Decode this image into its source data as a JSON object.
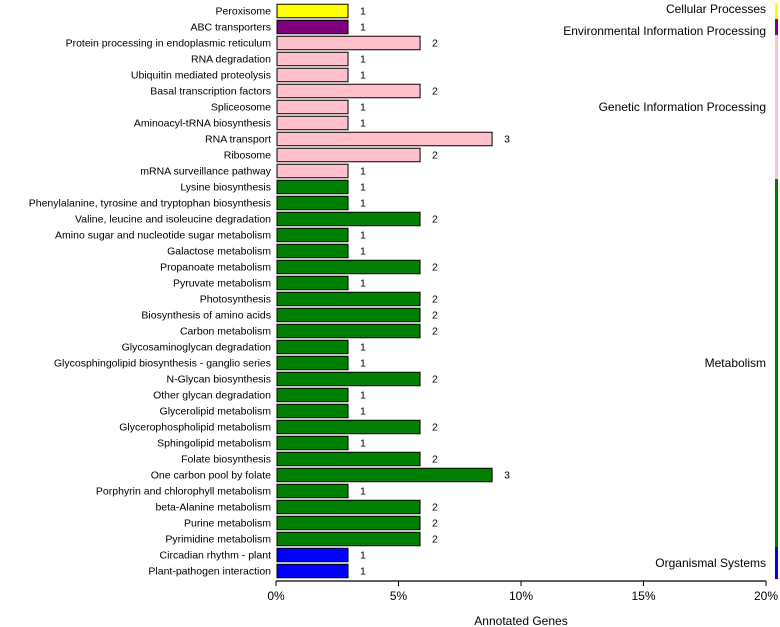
{
  "chart_data": {
    "type": "bar",
    "orientation": "horizontal",
    "xlabel": "Annotated Genes",
    "xlim": [
      0,
      20
    ],
    "xticks": [
      0,
      5,
      10,
      15,
      20
    ],
    "xtick_labels": [
      "0%",
      "5%",
      "10%",
      "15%",
      "20%"
    ],
    "groups": [
      {
        "name": "Cellular Processes",
        "color": "#ffff00"
      },
      {
        "name": "Environmental Information Processing",
        "color": "#800080"
      },
      {
        "name": "Genetic Information Processing",
        "color": "#ffc0cb"
      },
      {
        "name": "Metabolism",
        "color": "#008000"
      },
      {
        "name": "Organismal Systems",
        "color": "#0000ff"
      }
    ],
    "categories": [
      {
        "name": "Peroxisome",
        "count": 1,
        "percent": 2.94,
        "group": 0
      },
      {
        "name": "ABC transporters",
        "count": 1,
        "percent": 2.94,
        "group": 1
      },
      {
        "name": "Protein processing in endoplasmic reticulum",
        "count": 2,
        "percent": 5.88,
        "group": 2
      },
      {
        "name": "RNA degradation",
        "count": 1,
        "percent": 2.94,
        "group": 2
      },
      {
        "name": "Ubiquitin mediated proteolysis",
        "count": 1,
        "percent": 2.94,
        "group": 2
      },
      {
        "name": "Basal transcription factors",
        "count": 2,
        "percent": 5.88,
        "group": 2
      },
      {
        "name": "Spliceosome",
        "count": 1,
        "percent": 2.94,
        "group": 2
      },
      {
        "name": "Aminoacyl-tRNA biosynthesis",
        "count": 1,
        "percent": 2.94,
        "group": 2
      },
      {
        "name": "RNA transport",
        "count": 3,
        "percent": 8.82,
        "group": 2
      },
      {
        "name": "Ribosome",
        "count": 2,
        "percent": 5.88,
        "group": 2
      },
      {
        "name": "mRNA surveillance pathway",
        "count": 1,
        "percent": 2.94,
        "group": 2
      },
      {
        "name": "Lysine biosynthesis",
        "count": 1,
        "percent": 2.94,
        "group": 3
      },
      {
        "name": "Phenylalanine, tyrosine and tryptophan biosynthesis",
        "count": 1,
        "percent": 2.94,
        "group": 3
      },
      {
        "name": "Valine, leucine and isoleucine degradation",
        "count": 2,
        "percent": 5.88,
        "group": 3
      },
      {
        "name": "Amino sugar and nucleotide sugar metabolism",
        "count": 1,
        "percent": 2.94,
        "group": 3
      },
      {
        "name": "Galactose metabolism",
        "count": 1,
        "percent": 2.94,
        "group": 3
      },
      {
        "name": "Propanoate metabolism",
        "count": 2,
        "percent": 5.88,
        "group": 3
      },
      {
        "name": "Pyruvate metabolism",
        "count": 1,
        "percent": 2.94,
        "group": 3
      },
      {
        "name": "Photosynthesis",
        "count": 2,
        "percent": 5.88,
        "group": 3
      },
      {
        "name": "Biosynthesis of amino acids",
        "count": 2,
        "percent": 5.88,
        "group": 3
      },
      {
        "name": "Carbon metabolism",
        "count": 2,
        "percent": 5.88,
        "group": 3
      },
      {
        "name": "Glycosaminoglycan degradation",
        "count": 1,
        "percent": 2.94,
        "group": 3
      },
      {
        "name": "Glycosphingolipid biosynthesis - ganglio series",
        "count": 1,
        "percent": 2.94,
        "group": 3
      },
      {
        "name": "N-Glycan biosynthesis",
        "count": 2,
        "percent": 5.88,
        "group": 3
      },
      {
        "name": "Other glycan degradation",
        "count": 1,
        "percent": 2.94,
        "group": 3
      },
      {
        "name": "Glycerolipid metabolism",
        "count": 1,
        "percent": 2.94,
        "group": 3
      },
      {
        "name": "Glycerophospholipid metabolism",
        "count": 2,
        "percent": 5.88,
        "group": 3
      },
      {
        "name": "Sphingolipid metabolism",
        "count": 1,
        "percent": 2.94,
        "group": 3
      },
      {
        "name": "Folate biosynthesis",
        "count": 2,
        "percent": 5.88,
        "group": 3
      },
      {
        "name": "One carbon pool by folate",
        "count": 3,
        "percent": 8.82,
        "group": 3
      },
      {
        "name": "Porphyrin and chlorophyll metabolism",
        "count": 1,
        "percent": 2.94,
        "group": 3
      },
      {
        "name": "beta-Alanine metabolism",
        "count": 2,
        "percent": 5.88,
        "group": 3
      },
      {
        "name": "Purine metabolism",
        "count": 2,
        "percent": 5.88,
        "group": 3
      },
      {
        "name": "Pyrimidine metabolism",
        "count": 2,
        "percent": 5.88,
        "group": 3
      },
      {
        "name": "Circadian rhythm - plant",
        "count": 1,
        "percent": 2.94,
        "group": 4
      },
      {
        "name": "Plant-pathogen interaction",
        "count": 1,
        "percent": 2.94,
        "group": 4
      }
    ]
  }
}
